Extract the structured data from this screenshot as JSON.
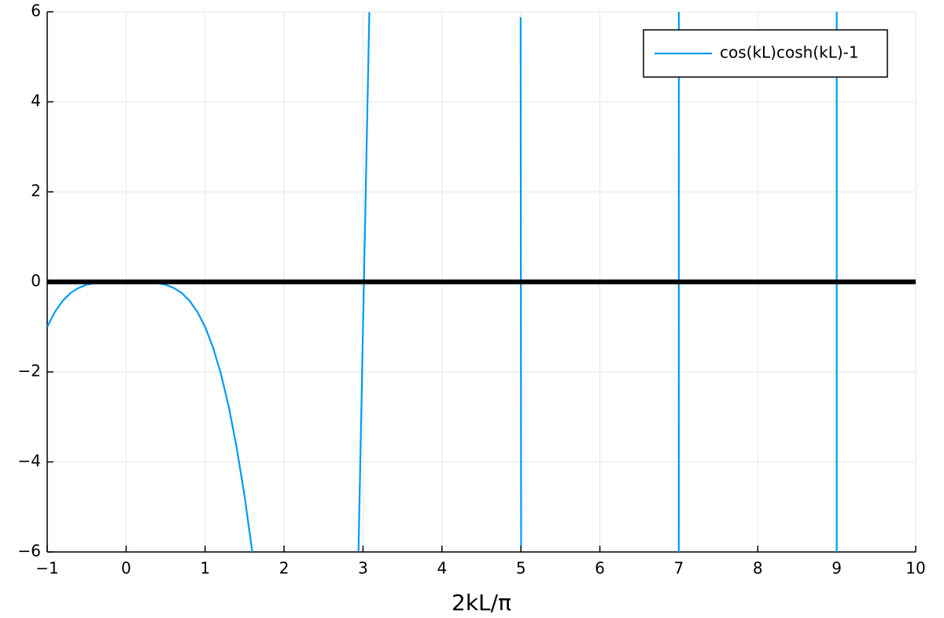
{
  "chart_data": {
    "type": "line",
    "x_label": "2kL/π",
    "series": [
      {
        "name": "cos(kL)cosh(kL)-1",
        "color": "#009af9",
        "x": [
          -1,
          -0.9,
          -0.8,
          -0.7,
          -0.6,
          -0.5,
          -0.4,
          -0.3,
          -0.2,
          -0.1,
          0,
          0.1,
          0.2,
          0.3,
          0.4,
          0.5,
          0.6,
          0.7,
          0.8,
          0.9,
          1,
          1.1,
          1.2,
          1.3,
          1.4,
          1.5,
          1.6,
          null,
          2.943,
          3,
          3.08,
          null,
          4.9966,
          5,
          5.0024,
          null,
          6.99989,
          7,
          7.00015,
          null,
          8.9999945,
          9,
          9.0000046
        ],
        "values": [
          -1,
          -0.66,
          -0.413,
          -0.242,
          -0.132,
          -0.063,
          -0.026,
          -0.008,
          -0.002,
          0,
          0,
          0,
          -0.002,
          -0.008,
          -0.026,
          -0.063,
          -0.132,
          -0.242,
          -0.413,
          -0.66,
          -1,
          -1.454,
          -2.041,
          -2.777,
          -3.683,
          -4.763,
          -6.026,
          null,
          -5.98,
          -1,
          5.99,
          null,
          5.88,
          -1,
          -5.86,
          null,
          -6,
          -1,
          6,
          null,
          6,
          -1,
          -6
        ]
      }
    ],
    "reference_line": {
      "y": 0,
      "color": "#000000"
    },
    "xlim": [
      -1,
      10
    ],
    "ylim": [
      -6,
      6
    ],
    "xticks": [
      {
        "value": -1,
        "label": "−1"
      },
      0,
      1,
      2,
      3,
      4,
      5,
      6,
      7,
      8,
      9,
      10
    ],
    "yticks": [
      {
        "value": -6,
        "label": "−6"
      },
      {
        "value": -4,
        "label": "−4"
      },
      {
        "value": -2,
        "label": "−2"
      },
      0,
      2,
      4,
      6
    ],
    "grid": true,
    "legend": "top-right"
  }
}
